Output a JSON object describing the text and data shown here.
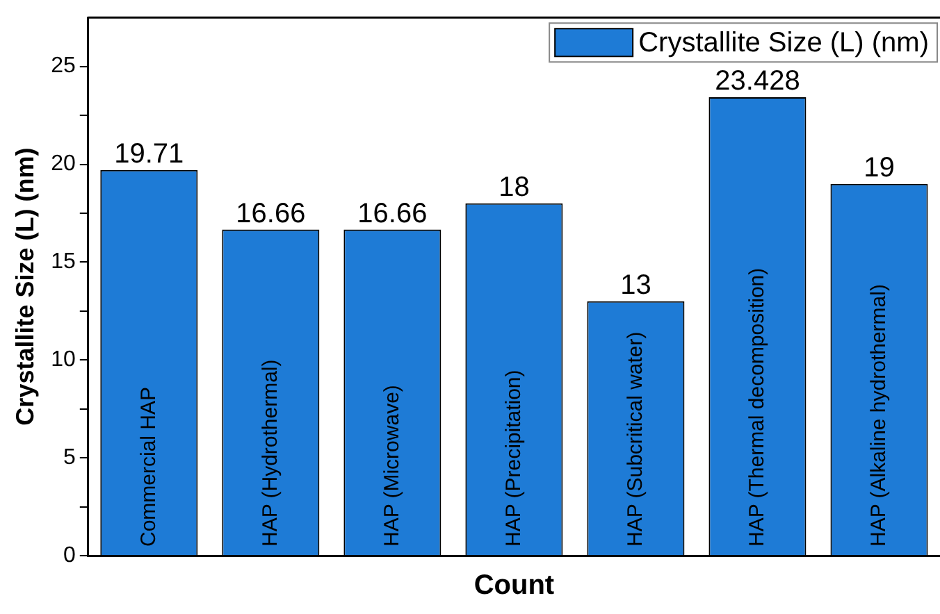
{
  "chart_data": {
    "type": "bar",
    "xlabel": "Count",
    "ylabel": "Crystallite Size (L) (nm)",
    "categories": [
      "Commercial HAP",
      "HAP (Hydrothermal)",
      "HAP (Microwave)",
      "HAP (Precipitation)",
      "HAP (Subcritical water)",
      "HAP (Thermal decomposition)",
      "HAP (Alkaline hydrothermal)"
    ],
    "series": [
      {
        "name": "Crystallite Size (L) (nm)",
        "color": "#1e7bd6",
        "values": [
          19.71,
          16.66,
          16.66,
          18,
          13,
          23.428,
          19
        ]
      }
    ],
    "ylim": [
      0,
      27.5
    ],
    "yticks": [
      0,
      {
        "value": 2.5,
        "label": null
      },
      5,
      {
        "value": 7.5,
        "label": null
      },
      10,
      {
        "value": 12.5,
        "label": null
      },
      15,
      {
        "value": 17.5,
        "label": null
      },
      20,
      {
        "value": 22.5,
        "label": null
      },
      25
    ],
    "data_labels": true,
    "legend": "top right",
    "grid": false
  }
}
